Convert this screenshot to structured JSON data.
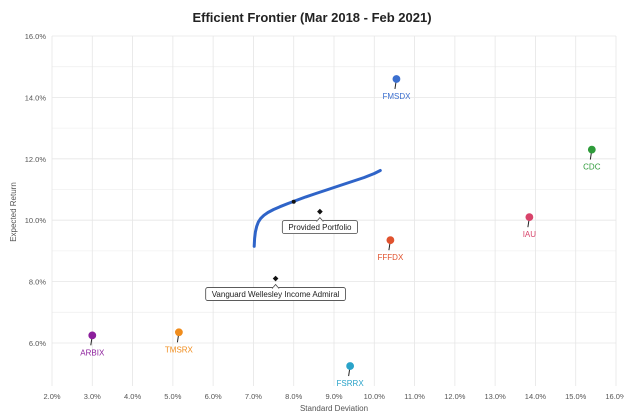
{
  "chart_data": {
    "type": "scatter",
    "title": "Efficient Frontier (Mar 2018 - Feb 2021)",
    "xlabel": "Standard Deviation",
    "ylabel": "Expected Return",
    "xlim": [
      2.0,
      16.0
    ],
    "ylim": [
      4.6,
      16.0
    ],
    "x_ticks": [
      2.0,
      3.0,
      4.0,
      5.0,
      6.0,
      7.0,
      8.0,
      9.0,
      10.0,
      11.0,
      12.0,
      13.0,
      14.0,
      15.0,
      16.0
    ],
    "y_ticks": [
      6.0,
      8.0,
      10.0,
      12.0,
      14.0,
      16.0
    ],
    "tick_format": "percent_1dp",
    "grid": true,
    "assets": [
      {
        "name": "FMSDX",
        "x": 10.55,
        "y": 14.6,
        "color": "#3b6fcf"
      },
      {
        "name": "CDC",
        "x": 15.4,
        "y": 12.3,
        "color": "#2e9b3a"
      },
      {
        "name": "IAU",
        "x": 13.85,
        "y": 10.1,
        "color": "#d8436a"
      },
      {
        "name": "FFFDX",
        "x": 10.4,
        "y": 9.35,
        "color": "#e0522e"
      },
      {
        "name": "ARBIX",
        "x": 3.0,
        "y": 6.25,
        "color": "#8c1f9c"
      },
      {
        "name": "TMSRX",
        "x": 5.15,
        "y": 6.35,
        "color": "#f08c1c"
      },
      {
        "name": "FSRRX",
        "x": 9.4,
        "y": 5.25,
        "color": "#2aa3c9"
      }
    ],
    "portfolios": [
      {
        "name": "Provided Portfolio",
        "x": 8.65,
        "y": 10.28
      },
      {
        "name": "Vanguard Wellesley Income Admiral",
        "x": 7.55,
        "y": 8.1
      }
    ],
    "frontier": {
      "color": "#2f64c8",
      "x": [
        7.02,
        7.03,
        7.05,
        7.08,
        7.12,
        7.18,
        7.26,
        7.36,
        7.5,
        7.66,
        7.85,
        8.05,
        8.3,
        8.55,
        8.85,
        9.15,
        9.45,
        9.75,
        10.0,
        10.15
      ],
      "y": [
        9.15,
        9.4,
        9.62,
        9.8,
        9.94,
        10.06,
        10.16,
        10.25,
        10.35,
        10.44,
        10.54,
        10.64,
        10.76,
        10.87,
        11.0,
        11.13,
        11.26,
        11.39,
        11.52,
        11.62
      ]
    },
    "frontier_marker": {
      "x": 8.0,
      "y": 10.6
    }
  }
}
